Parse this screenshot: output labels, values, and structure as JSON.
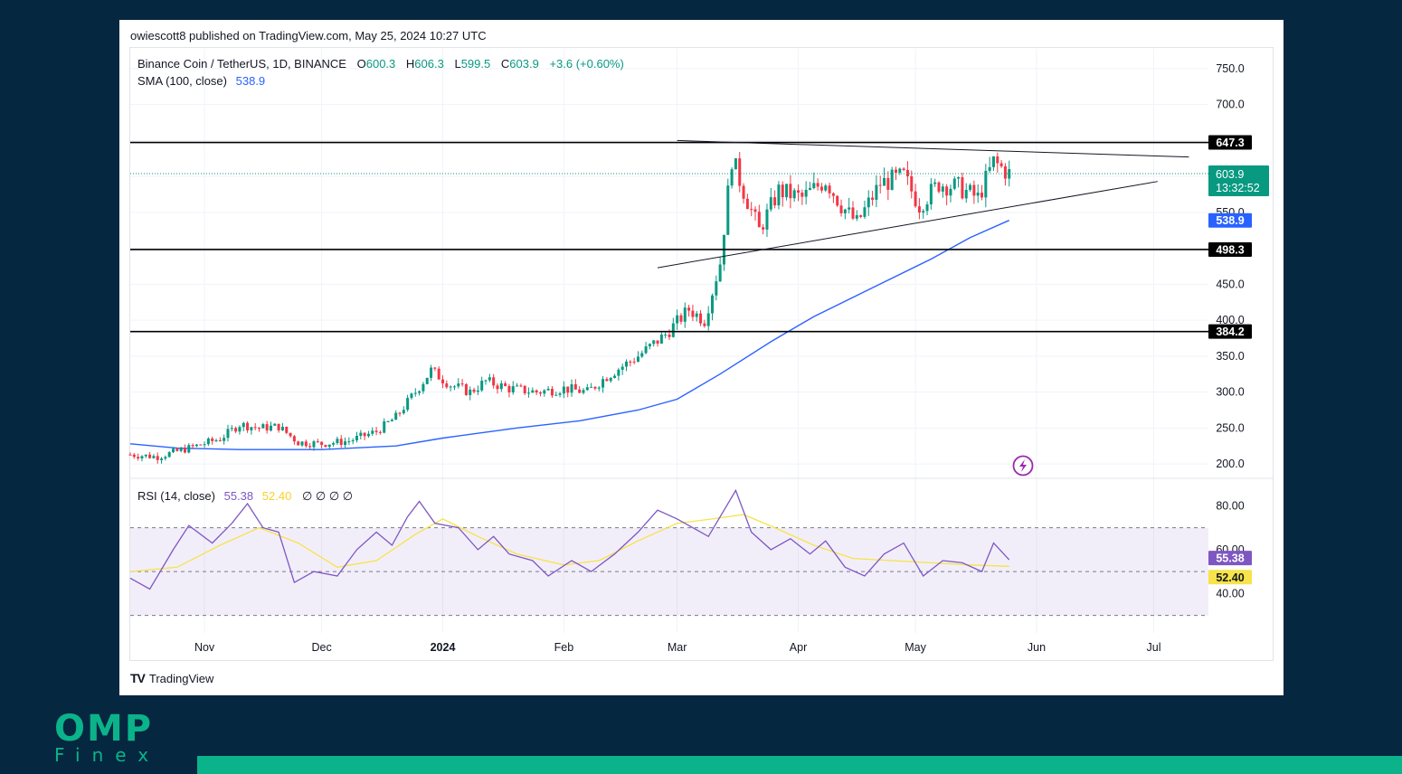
{
  "publisher": "owiescott8 published on TradingView.com, May 25, 2024 10:27 UTC",
  "legend": {
    "symbol": "Binance Coin / TetherUS, 1D, BINANCE",
    "o_label": "O",
    "o_value": "600.3",
    "h_label": "H",
    "h_value": "606.3",
    "l_label": "L",
    "l_value": "599.5",
    "c_label": "C",
    "c_value": "603.9",
    "change": "+3.6 (+0.60%)",
    "sma_label": "SMA (100, close)",
    "sma_value": "538.9",
    "rsi_label": "RSI (14, close)",
    "rsi_value": "55.38",
    "rsi_ma_value": "52.40",
    "rsi_extra": "∅ ∅ ∅ ∅"
  },
  "countdown": "13:32:52",
  "tradingview_label": "TradingView",
  "brand": {
    "name": "OMP",
    "sub": "Finex"
  },
  "colors": {
    "up": "#089981",
    "down": "#f23645",
    "sma": "#2962ff",
    "rsi": "#7e57c2",
    "rsi_ma": "#f7e34a",
    "levels": "#000000"
  },
  "chart_data": [
    {
      "type": "candlestick",
      "title": "Binance Coin / TetherUS, 1D, BINANCE",
      "x_tick_labels": [
        "Nov",
        "Dec",
        "2024",
        "Feb",
        "Mar",
        "Apr",
        "May",
        "Jun",
        "Jul"
      ],
      "y_tick_labels": [
        "750.0",
        "700.0",
        "550.0",
        "450.0",
        "400.0",
        "350.0",
        "300.0",
        "250.0",
        "200.0"
      ],
      "ylim": [
        185,
        770
      ],
      "x_range": [
        "2023-10-13",
        "2024-07-15"
      ],
      "horizontal_levels": [
        {
          "label": "647.3",
          "value": 647.3
        },
        {
          "label": "498.3",
          "value": 498.3
        },
        {
          "label": "384.2",
          "value": 384.2
        }
      ],
      "last_price": {
        "label": "603.9",
        "value": 603.9
      },
      "sma_100": {
        "name": "SMA (100, close)",
        "last_label": "538.9",
        "points": [
          [
            "2023-10-13",
            228
          ],
          [
            "2023-10-25",
            222
          ],
          [
            "2023-11-10",
            220
          ],
          [
            "2023-12-01",
            220
          ],
          [
            "2023-12-20",
            225
          ],
          [
            "2024-01-01",
            236
          ],
          [
            "2024-01-20",
            250
          ],
          [
            "2024-02-05",
            260
          ],
          [
            "2024-02-20",
            275
          ],
          [
            "2024-03-01",
            290
          ],
          [
            "2024-03-12",
            325
          ],
          [
            "2024-03-25",
            370
          ],
          [
            "2024-04-05",
            405
          ],
          [
            "2024-04-20",
            445
          ],
          [
            "2024-05-05",
            485
          ],
          [
            "2024-05-15",
            515
          ],
          [
            "2024-05-25",
            538.9
          ]
        ]
      },
      "trendlines": [
        {
          "name": "triangle-top",
          "points": [
            [
              "2024-03-01",
              650
            ],
            [
              "2024-07-10",
              627
            ]
          ]
        },
        {
          "name": "triangle-bottom",
          "points": [
            [
              "2024-02-25",
              473
            ],
            [
              "2024-07-02",
              593
            ]
          ]
        }
      ],
      "close_path": [
        [
          "2023-10-13",
          213
        ],
        [
          "2023-10-20",
          210
        ],
        [
          "2023-10-28",
          222
        ],
        [
          "2023-11-05",
          235
        ],
        [
          "2023-11-10",
          255
        ],
        [
          "2023-11-15",
          250
        ],
        [
          "2023-11-20",
          252
        ],
        [
          "2023-11-25",
          230
        ],
        [
          "2023-12-01",
          228
        ],
        [
          "2023-12-08",
          232
        ],
        [
          "2023-12-15",
          245
        ],
        [
          "2023-12-20",
          265
        ],
        [
          "2023-12-25",
          300
        ],
        [
          "2023-12-29",
          330
        ],
        [
          "2024-01-03",
          310
        ],
        [
          "2024-01-08",
          300
        ],
        [
          "2024-01-12",
          315
        ],
        [
          "2024-01-18",
          305
        ],
        [
          "2024-01-25",
          300
        ],
        [
          "2024-02-01",
          305
        ],
        [
          "2024-02-07",
          300
        ],
        [
          "2024-02-12",
          322
        ],
        [
          "2024-02-20",
          350
        ],
        [
          "2024-02-27",
          380
        ],
        [
          "2024-03-04",
          415
        ],
        [
          "2024-03-08",
          400
        ],
        [
          "2024-03-12",
          480
        ],
        [
          "2024-03-15",
          625
        ],
        [
          "2024-03-18",
          580
        ],
        [
          "2024-03-22",
          525
        ],
        [
          "2024-03-27",
          580
        ],
        [
          "2024-04-02",
          570
        ],
        [
          "2024-04-08",
          595
        ],
        [
          "2024-04-12",
          560
        ],
        [
          "2024-04-16",
          535
        ],
        [
          "2024-04-22",
          590
        ],
        [
          "2024-04-28",
          600
        ],
        [
          "2024-05-02",
          560
        ],
        [
          "2024-05-07",
          590
        ],
        [
          "2024-05-12",
          585
        ],
        [
          "2024-05-17",
          570
        ],
        [
          "2024-05-21",
          620
        ],
        [
          "2024-05-25",
          603.9
        ]
      ]
    },
    {
      "type": "line",
      "title": "RSI (14, close)",
      "y_tick_labels": [
        "80.00",
        "60.00",
        "40.00"
      ],
      "ylim": [
        22,
        88
      ],
      "bands": [
        30,
        50,
        70
      ],
      "series": [
        {
          "name": "RSI",
          "last_label": "55.38",
          "points": [
            [
              "2023-10-13",
              47
            ],
            [
              "2023-10-18",
              42
            ],
            [
              "2023-10-24",
              60
            ],
            [
              "2023-10-28",
              71
            ],
            [
              "2023-11-03",
              63
            ],
            [
              "2023-11-08",
              72
            ],
            [
              "2023-11-12",
              81
            ],
            [
              "2023-11-16",
              70
            ],
            [
              "2023-11-20",
              68
            ],
            [
              "2023-11-24",
              45
            ],
            [
              "2023-11-29",
              50
            ],
            [
              "2023-12-05",
              48
            ],
            [
              "2023-12-10",
              60
            ],
            [
              "2023-12-15",
              68
            ],
            [
              "2023-12-19",
              62
            ],
            [
              "2023-12-23",
              75
            ],
            [
              "2023-12-26",
              82
            ],
            [
              "2023-12-30",
              72
            ],
            [
              "2024-01-05",
              70
            ],
            [
              "2024-01-10",
              60
            ],
            [
              "2024-01-14",
              66
            ],
            [
              "2024-01-18",
              58
            ],
            [
              "2024-01-24",
              55
            ],
            [
              "2024-01-28",
              48
            ],
            [
              "2024-02-03",
              55
            ],
            [
              "2024-02-08",
              50
            ],
            [
              "2024-02-14",
              58
            ],
            [
              "2024-02-20",
              68
            ],
            [
              "2024-02-25",
              78
            ],
            [
              "2024-03-01",
              74
            ],
            [
              "2024-03-05",
              70
            ],
            [
              "2024-03-09",
              66
            ],
            [
              "2024-03-13",
              78
            ],
            [
              "2024-03-16",
              87
            ],
            [
              "2024-03-20",
              68
            ],
            [
              "2024-03-25",
              60
            ],
            [
              "2024-03-30",
              65
            ],
            [
              "2024-04-04",
              58
            ],
            [
              "2024-04-08",
              64
            ],
            [
              "2024-04-13",
              52
            ],
            [
              "2024-04-18",
              48
            ],
            [
              "2024-04-23",
              58
            ],
            [
              "2024-04-28",
              63
            ],
            [
              "2024-05-03",
              48
            ],
            [
              "2024-05-08",
              55
            ],
            [
              "2024-05-13",
              54
            ],
            [
              "2024-05-18",
              50
            ],
            [
              "2024-05-21",
              63
            ],
            [
              "2024-05-25",
              55.38
            ]
          ]
        },
        {
          "name": "RSI-based MA",
          "last_label": "52.40",
          "points": [
            [
              "2023-10-13",
              50
            ],
            [
              "2023-10-25",
              52
            ],
            [
              "2023-11-05",
              62
            ],
            [
              "2023-11-15",
              70
            ],
            [
              "2023-11-25",
              63
            ],
            [
              "2023-12-05",
              52
            ],
            [
              "2023-12-15",
              55
            ],
            [
              "2023-12-25",
              67
            ],
            [
              "2024-01-01",
              74
            ],
            [
              "2024-01-10",
              66
            ],
            [
              "2024-01-20",
              58
            ],
            [
              "2024-02-01",
              53
            ],
            [
              "2024-02-10",
              55
            ],
            [
              "2024-02-20",
              64
            ],
            [
              "2024-03-01",
              72
            ],
            [
              "2024-03-10",
              74
            ],
            [
              "2024-03-18",
              76
            ],
            [
              "2024-03-26",
              70
            ],
            [
              "2024-04-05",
              62
            ],
            [
              "2024-04-15",
              56
            ],
            [
              "2024-04-25",
              55
            ],
            [
              "2024-05-05",
              54
            ],
            [
              "2024-05-15",
              53
            ],
            [
              "2024-05-25",
              52.4
            ]
          ]
        }
      ]
    }
  ]
}
